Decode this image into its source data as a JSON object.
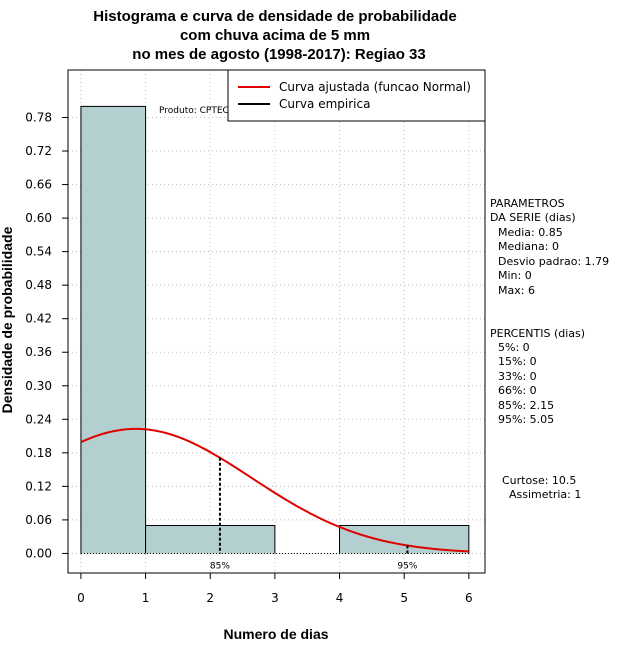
{
  "chart_data": {
    "type": "bar",
    "title_lines": [
      "Histograma e curva de densidade de probabilidade",
      "com chuva acima de 5 mm",
      "no mes de agosto (1998-2017): Regiao 33"
    ],
    "xlabel": "Numero de dias",
    "ylabel": "Densidade de probabilidade",
    "xlim": [
      -0.2,
      6.25
    ],
    "ylim": [
      -0.035,
      0.865
    ],
    "x_ticks": [
      "0",
      "1",
      "2",
      "3",
      "4",
      "5",
      "6"
    ],
    "y_ticks": [
      "0.00",
      "0.06",
      "0.12",
      "0.18",
      "0.24",
      "0.30",
      "0.36",
      "0.42",
      "0.48",
      "0.54",
      "0.60",
      "0.66",
      "0.72",
      "0.78"
    ],
    "bars": [
      {
        "x0": 0,
        "x1": 1,
        "value": 0.8
      },
      {
        "x0": 1,
        "x1": 3,
        "value": 0.05
      },
      {
        "x0": 4,
        "x1": 6,
        "value": 0.05
      }
    ],
    "normal_fit": {
      "mean": 0.85,
      "sd": 1.79,
      "x_from": 0,
      "x_to": 6,
      "color": "#e00000"
    },
    "percentile_markers": [
      {
        "x": 2.15,
        "label": "85%"
      },
      {
        "x": 5.05,
        "label": "95%"
      }
    ],
    "bar_fill": "#b3cfcf",
    "credit": "Produto: CPTEC/INPE",
    "legend": {
      "position": "top-right",
      "items": [
        {
          "label": "Curva ajustada (funcao Normal)",
          "color": "#e00000"
        },
        {
          "label": "Curva empirica",
          "color": "#000000"
        }
      ]
    }
  },
  "sidebar": {
    "params_title": [
      "PARAMETROS",
      "DA SERIE (dias)"
    ],
    "params": [
      "Media: 0.85",
      "Mediana: 0",
      "Desvio padrao: 1.79",
      "Min: 0",
      "Max: 6"
    ],
    "percentis_title": "PERCENTIS (dias)",
    "percentis": [
      "5%: 0",
      "15%: 0",
      "33%: 0",
      "66%: 0",
      "85%: 2.15",
      "95%: 5.05"
    ],
    "curtose": "Curtose: 10.5",
    "assimetria": "Assimetria: 1"
  }
}
